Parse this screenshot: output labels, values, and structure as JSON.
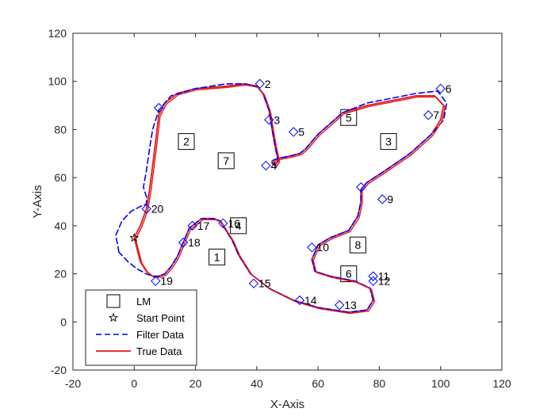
{
  "chart_data": {
    "type": "line",
    "xlabel": "X-Axis",
    "ylabel": "Y-Axis",
    "xlim": [
      -20,
      120
    ],
    "ylim": [
      -20,
      120
    ],
    "xticks": [
      "-20",
      "0",
      "20",
      "40",
      "60",
      "80",
      "100",
      "120"
    ],
    "yticks": [
      "-20",
      "0",
      "20",
      "40",
      "60",
      "80",
      "100",
      "120"
    ],
    "grid": false,
    "legend_position": "bottom-left",
    "colors": {
      "filter": "#0000ff",
      "true": "#e31a1c",
      "waypoint": "#0000ff",
      "axis": "#262626"
    },
    "legend": [
      {
        "label": "LM",
        "marker": "square"
      },
      {
        "label": "Start Point",
        "marker": "star"
      },
      {
        "label": "Filter Data",
        "marker": "dashed-line"
      },
      {
        "label": "True Data",
        "marker": "solid-line"
      }
    ],
    "start_point": {
      "x": 0,
      "y": 35
    },
    "landmarks": [
      {
        "label": "1",
        "x": 27,
        "y": 27
      },
      {
        "label": "2",
        "x": 17,
        "y": 75
      },
      {
        "label": "3",
        "x": 83,
        "y": 75
      },
      {
        "label": "4",
        "x": 34,
        "y": 40
      },
      {
        "label": "5",
        "x": 70,
        "y": 85
      },
      {
        "label": "6",
        "x": 70,
        "y": 20
      },
      {
        "label": "7",
        "x": 30,
        "y": 67
      },
      {
        "label": "8",
        "x": 73,
        "y": 32
      }
    ],
    "waypoints": [
      {
        "label": "2",
        "x": 41,
        "y": 99
      },
      {
        "label": "3",
        "x": 44,
        "y": 84
      },
      {
        "label": "4",
        "x": 43,
        "y": 65
      },
      {
        "label": "5",
        "x": 52,
        "y": 79
      },
      {
        "label": "6",
        "x": 100,
        "y": 97
      },
      {
        "label": "7",
        "x": 96,
        "y": 86
      },
      {
        "label": "9",
        "x": 81,
        "y": 51
      },
      {
        "label": "10",
        "x": 58,
        "y": 31
      },
      {
        "label": "11",
        "x": 78,
        "y": 19
      },
      {
        "label": "12",
        "x": 78,
        "y": 17
      },
      {
        "label": "13",
        "x": 67,
        "y": 7
      },
      {
        "label": "14",
        "x": 54,
        "y": 9
      },
      {
        "label": "15",
        "x": 39,
        "y": 16
      },
      {
        "label": "16",
        "x": 29,
        "y": 41
      },
      {
        "label": "17",
        "x": 19,
        "y": 40
      },
      {
        "label": "18",
        "x": 16,
        "y": 33
      },
      {
        "label": "19",
        "x": 7,
        "y": 17
      },
      {
        "label": "20",
        "x": 4,
        "y": 47
      },
      {
        "label": "",
        "x": 74,
        "y": 56
      },
      {
        "label": "",
        "x": 8,
        "y": 89
      }
    ],
    "series": [
      {
        "name": "True Data",
        "style": "solid",
        "x": [
          0,
          2,
          4,
          5,
          6,
          7,
          8,
          10,
          14,
          20,
          30,
          36,
          40,
          42,
          44,
          45,
          46,
          47,
          46,
          45,
          45,
          47,
          51,
          54,
          56,
          60,
          68,
          76,
          84,
          92,
          98,
          101,
          100,
          97,
          90,
          82,
          76,
          74,
          74,
          73,
          70,
          64,
          60,
          58,
          59,
          64,
          72,
          77,
          78,
          76,
          70,
          60,
          52,
          44,
          38,
          34,
          32,
          30,
          28,
          26,
          22,
          18,
          16,
          14,
          12,
          10,
          8,
          6,
          4,
          2,
          1,
          0
        ],
        "y": [
          35,
          40,
          47,
          55,
          65,
          75,
          86,
          91,
          95,
          97,
          98,
          99,
          98,
          95,
          88,
          80,
          73,
          67,
          65,
          66,
          67,
          68,
          69,
          70,
          72,
          78,
          87,
          90,
          92,
          94,
          94,
          90,
          84,
          78,
          70,
          63,
          58,
          55,
          50,
          44,
          38,
          35,
          32,
          26,
          21,
          19,
          17,
          14,
          9,
          5,
          4,
          6,
          9,
          14,
          20,
          28,
          34,
          38,
          42,
          43,
          43,
          39,
          33,
          27,
          23,
          20,
          19,
          19,
          21,
          25,
          30,
          35
        ]
      },
      {
        "name": "Filter Data",
        "style": "dashed",
        "x": [
          -5,
          -6,
          -4,
          -1,
          2,
          4,
          4,
          3,
          4,
          5,
          6,
          8,
          12,
          20,
          30,
          36,
          40,
          42,
          44,
          45,
          46,
          47,
          46,
          45,
          45,
          47,
          51,
          54,
          56,
          60,
          68,
          76,
          84,
          92,
          99,
          102,
          101,
          97,
          90,
          82,
          76,
          74,
          74,
          73,
          70,
          64,
          60,
          58,
          59,
          64,
          72,
          77,
          78,
          76,
          70,
          60,
          52,
          44,
          38,
          34,
          32,
          30,
          28,
          26,
          22,
          18,
          16,
          14,
          12,
          10,
          8,
          6,
          4,
          1,
          -2,
          -5
        ],
        "y": [
          29,
          36,
          42,
          46,
          48,
          49,
          52,
          56,
          63,
          72,
          80,
          88,
          94,
          97,
          99,
          99,
          98,
          95,
          88,
          80,
          73,
          67,
          65,
          66,
          67,
          68,
          69,
          70,
          72,
          78,
          87,
          91,
          93,
          95,
          96,
          91,
          84,
          78,
          70,
          63,
          58,
          55,
          50,
          44,
          38,
          35,
          32,
          26,
          21,
          19,
          17,
          14,
          9,
          5,
          4,
          6,
          9,
          14,
          20,
          28,
          34,
          38,
          42,
          43,
          43,
          39,
          33,
          27,
          23,
          20,
          19,
          19,
          20,
          22,
          25,
          29
        ]
      }
    ]
  }
}
